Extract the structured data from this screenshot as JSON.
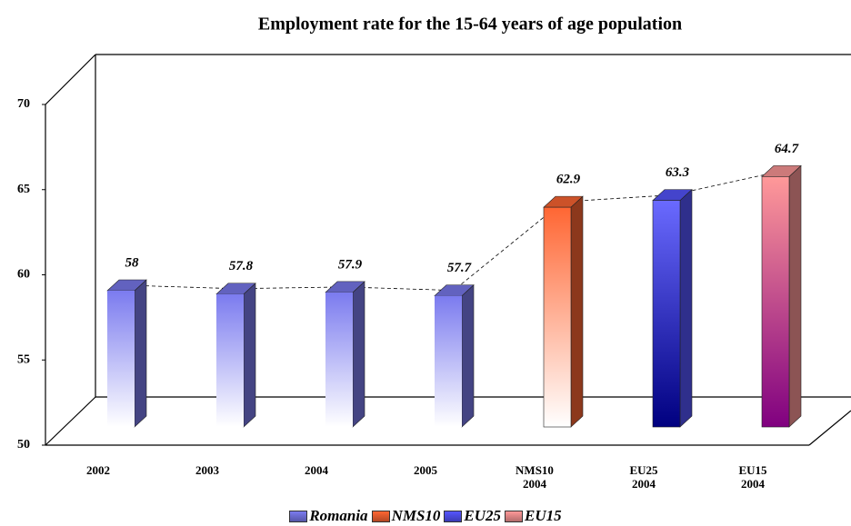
{
  "chart_data": {
    "type": "bar3d",
    "title": "Employment rate for the 15-64 years of age population",
    "categories": [
      "2002",
      "2003",
      "2004",
      "2005",
      "NMS10\n2004",
      "EU25\n2004",
      "EU15\n2004"
    ],
    "series": [
      {
        "name": "Romania",
        "color": "#7b7bef",
        "values": [
          58,
          57.8,
          57.9,
          57.7,
          null,
          null,
          null
        ]
      },
      {
        "name": "NMS10",
        "color": "#ff6633",
        "values": [
          null,
          null,
          null,
          null,
          62.9,
          null,
          null
        ]
      },
      {
        "name": "EU25",
        "color": "#5555ff",
        "values": [
          null,
          null,
          null,
          null,
          null,
          63.3,
          null
        ]
      },
      {
        "name": "EU15",
        "color": "#ff9999",
        "values": [
          null,
          null,
          null,
          null,
          null,
          null,
          64.7
        ]
      }
    ],
    "ylim": [
      50,
      70
    ],
    "yticks": [
      50,
      55,
      60,
      65,
      70
    ]
  }
}
